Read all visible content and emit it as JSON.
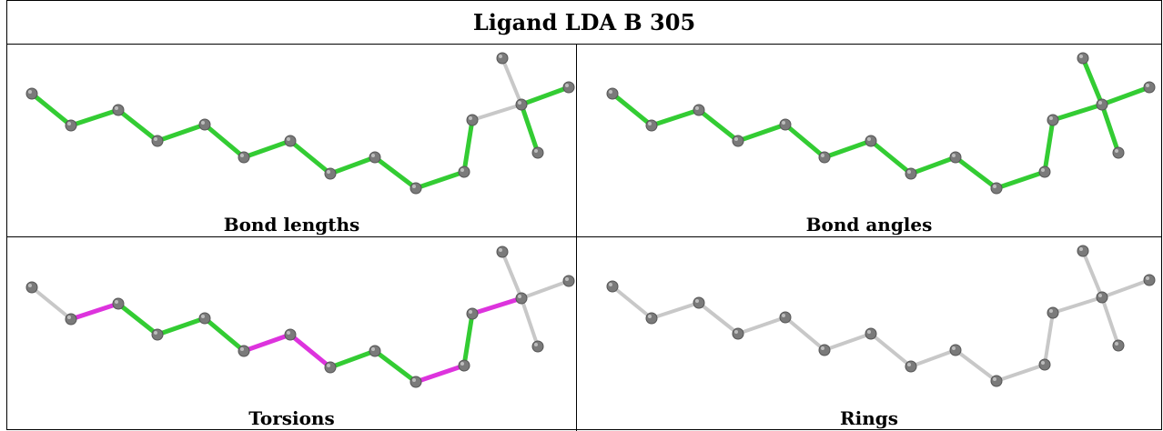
{
  "title": "Ligand LDA B 305",
  "colors": {
    "ok": "#33cc33",
    "outlier": "#dd33dd",
    "neutral": "#c8c8c8",
    "atom": "#7a7a7a"
  },
  "panels": [
    {
      "caption": "Bond lengths",
      "bond_colors": [
        "ok",
        "ok",
        "ok",
        "ok",
        "ok",
        "ok",
        "ok",
        "ok",
        "ok",
        "ok",
        "ok",
        "neutral",
        "neutral",
        "ok",
        "ok"
      ]
    },
    {
      "caption": "Bond angles",
      "bond_colors": [
        "ok",
        "ok",
        "ok",
        "ok",
        "ok",
        "ok",
        "ok",
        "ok",
        "ok",
        "ok",
        "ok",
        "ok",
        "ok",
        "ok",
        "ok"
      ]
    },
    {
      "caption": "Torsions",
      "bond_colors": [
        "neutral",
        "outlier",
        "ok",
        "ok",
        "ok",
        "outlier",
        "outlier",
        "ok",
        "ok",
        "outlier",
        "ok",
        "outlier",
        "neutral",
        "neutral",
        "neutral"
      ]
    },
    {
      "caption": "Rings",
      "bond_colors": [
        "neutral",
        "neutral",
        "neutral",
        "neutral",
        "neutral",
        "neutral",
        "neutral",
        "neutral",
        "neutral",
        "neutral",
        "neutral",
        "neutral",
        "neutral",
        "neutral",
        "neutral"
      ]
    }
  ]
}
